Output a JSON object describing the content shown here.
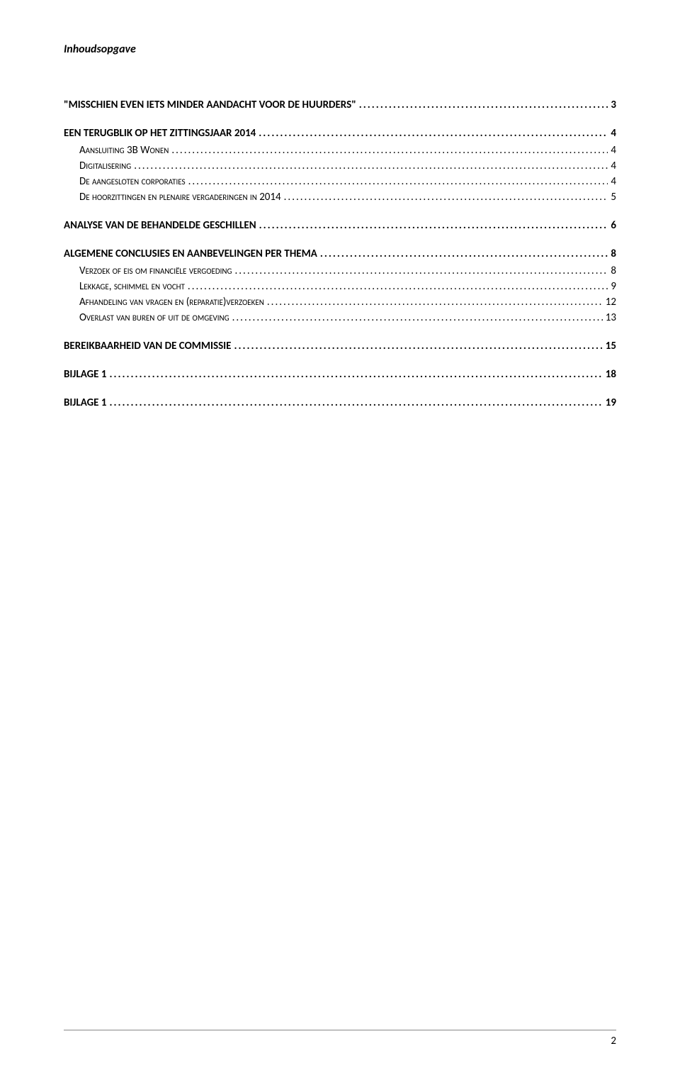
{
  "header": {
    "title": "Inhoudsopgave"
  },
  "toc": {
    "sections": [
      {
        "entries": [
          {
            "level": 1,
            "label": "\"MISSCHIEN EVEN IETS MINDER AANDACHT VOOR DE HUURDERS\"",
            "page": "3"
          }
        ]
      },
      {
        "entries": [
          {
            "level": 1,
            "label": "EEN TERUGBLIK OP HET ZITTINGSJAAR 2014",
            "page": "4"
          },
          {
            "level": 2,
            "label": "Aansluiting 3B Wonen",
            "page": "4"
          },
          {
            "level": 2,
            "label": "Digitalisering",
            "page": "4"
          },
          {
            "level": 2,
            "label": "De aangesloten corporaties",
            "page": "4"
          },
          {
            "level": 2,
            "label": "De hoorzittingen en plenaire vergaderingen in 2014",
            "page": "5"
          }
        ]
      },
      {
        "entries": [
          {
            "level": 1,
            "label": "ANALYSE VAN DE BEHANDELDE GESCHILLEN",
            "page": "6"
          }
        ]
      },
      {
        "entries": [
          {
            "level": 1,
            "label": "ALGEMENE CONCLUSIES EN AANBEVELINGEN PER THEMA",
            "page": "8"
          },
          {
            "level": 2,
            "label": "Verzoek of eis om financiële vergoeding",
            "page": "8"
          },
          {
            "level": 2,
            "label": "Lekkage, schimmel en vocht",
            "page": "9"
          },
          {
            "level": 2,
            "label": "Afhandeling van vragen en (reparatie)verzoeken",
            "page": "12"
          },
          {
            "level": 2,
            "label": "Overlast van buren of uit de omgeving",
            "page": "13"
          }
        ]
      },
      {
        "entries": [
          {
            "level": 1,
            "label": "BEREIKBAARHEID VAN DE COMMISSIE",
            "page": "15"
          }
        ]
      },
      {
        "entries": [
          {
            "level": 1,
            "label": "BIJLAGE 1",
            "page": "18"
          }
        ]
      },
      {
        "entries": [
          {
            "level": 1,
            "label": "BIJLAGE 1",
            "page": "19"
          }
        ]
      }
    ]
  },
  "footer": {
    "page_number": "2"
  }
}
